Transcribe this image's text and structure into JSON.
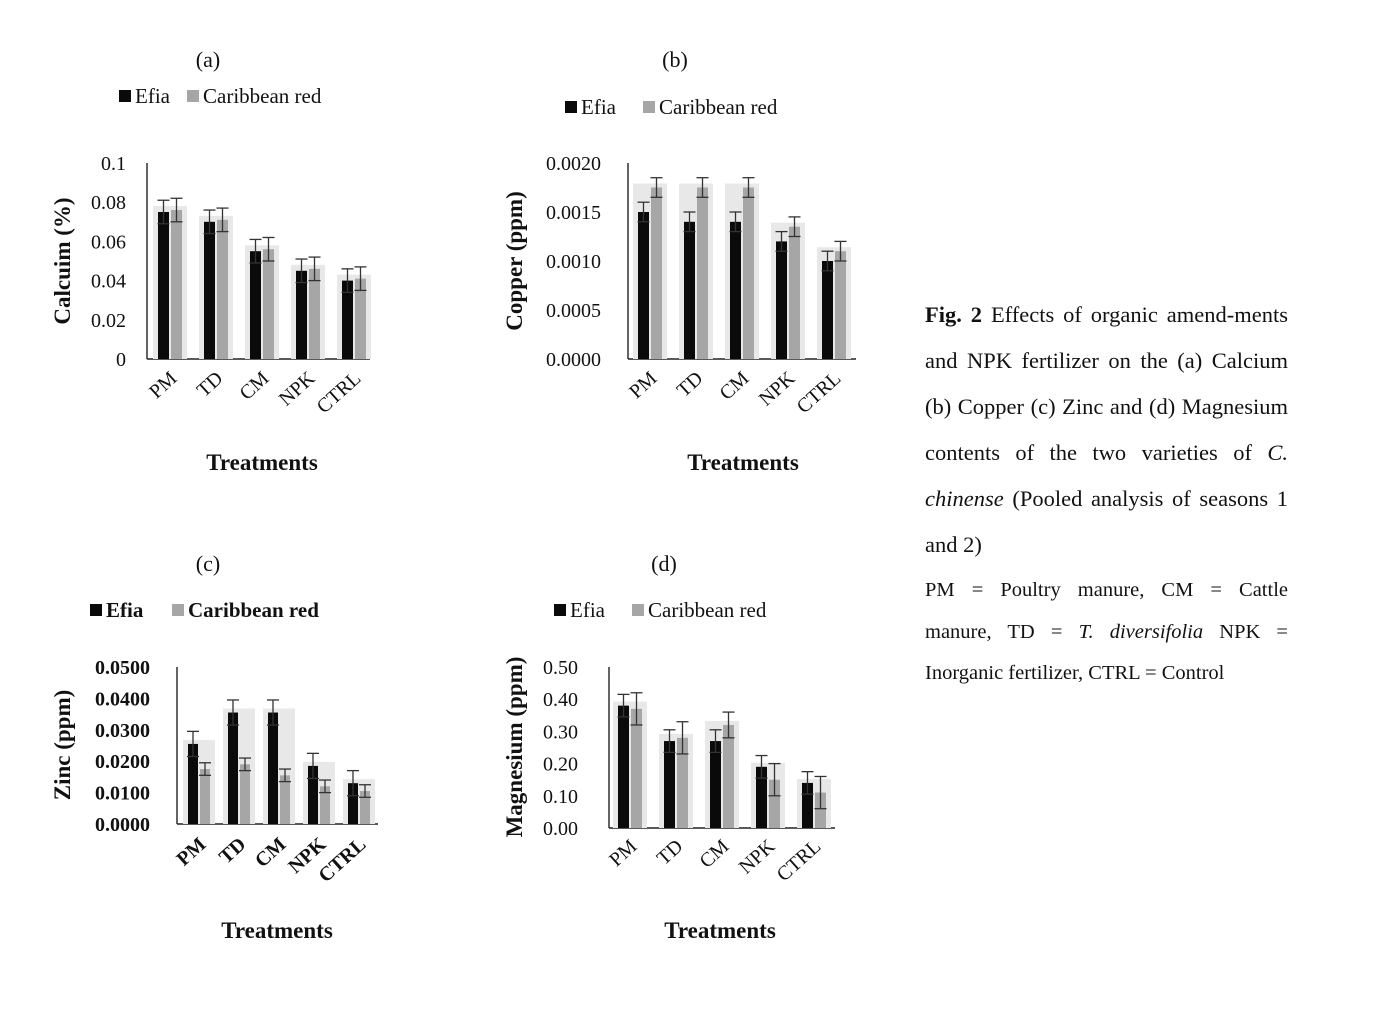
{
  "colors": {
    "efia": "#0a0a0a",
    "caribbean": "#a6a6a6",
    "axis": "#222222",
    "error": "#333333"
  },
  "chart_data": [
    {
      "type": "bar",
      "panel": "(a)",
      "title": "(a)",
      "categories": [
        "PM",
        "TD",
        "CM",
        "NPK",
        "CTRL"
      ],
      "series": [
        {
          "name": "Efia",
          "values": [
            0.075,
            0.07,
            0.055,
            0.045,
            0.04
          ],
          "errors": [
            0.006,
            0.006,
            0.006,
            0.006,
            0.006
          ]
        },
        {
          "name": "Caribbean red",
          "values": [
            0.076,
            0.071,
            0.056,
            0.046,
            0.041
          ],
          "errors": [
            0.006,
            0.006,
            0.006,
            0.006,
            0.006
          ]
        }
      ],
      "xlabel": "Treatments",
      "ylabel": "Calcuim (%)",
      "ylim": [
        0,
        0.1
      ],
      "yticks": [
        "0",
        "0.02",
        "0.04",
        "0.06",
        "0.08",
        "0.1"
      ],
      "legend": "top",
      "bold_ticks": false
    },
    {
      "type": "bar",
      "panel": "(b)",
      "title": "(b)",
      "categories": [
        "PM",
        "TD",
        "CM",
        "NPK",
        "CTRL"
      ],
      "series": [
        {
          "name": "Efia",
          "values": [
            0.0015,
            0.0014,
            0.0014,
            0.0012,
            0.001
          ],
          "errors": [
            0.0001,
            0.0001,
            0.0001,
            0.0001,
            0.0001
          ]
        },
        {
          "name": "Caribbean red",
          "values": [
            0.00175,
            0.00175,
            0.00175,
            0.00135,
            0.0011
          ],
          "errors": [
            0.0001,
            0.0001,
            0.0001,
            0.0001,
            0.0001
          ]
        }
      ],
      "xlabel": "Treatments",
      "ylabel": "Copper (ppm)",
      "ylim": [
        0,
        0.002
      ],
      "yticks": [
        "0.0000",
        "0.0005",
        "0.0010",
        "0.0015",
        "0.0020"
      ],
      "legend": "top",
      "bold_ticks": false
    },
    {
      "type": "bar",
      "panel": "(c)",
      "title": "(c)",
      "categories": [
        "PM",
        "TD",
        "CM",
        "NPK",
        "CTRL"
      ],
      "series": [
        {
          "name": "Efia",
          "values": [
            0.0255,
            0.0355,
            0.0355,
            0.0185,
            0.013
          ],
          "errors": [
            0.004,
            0.004,
            0.004,
            0.004,
            0.004
          ]
        },
        {
          "name": "Caribbean red",
          "values": [
            0.0175,
            0.019,
            0.0155,
            0.012,
            0.0105
          ],
          "errors": [
            0.002,
            0.002,
            0.002,
            0.002,
            0.002
          ]
        }
      ],
      "xlabel": "Treatments",
      "ylabel": "Zinc (ppm)",
      "ylim": [
        0,
        0.05
      ],
      "yticks": [
        "0.0000",
        "0.0100",
        "0.0200",
        "0.0300",
        "0.0400",
        "0.0500"
      ],
      "legend": "top",
      "bold_ticks": true
    },
    {
      "type": "bar",
      "panel": "(d)",
      "title": "(d)",
      "categories": [
        "PM",
        "TD",
        "CM",
        "NPK",
        "CTRL"
      ],
      "series": [
        {
          "name": "Efia",
          "values": [
            0.38,
            0.27,
            0.27,
            0.19,
            0.14
          ],
          "errors": [
            0.035,
            0.035,
            0.035,
            0.035,
            0.035
          ]
        },
        {
          "name": "Caribbean red",
          "values": [
            0.37,
            0.28,
            0.32,
            0.15,
            0.11
          ],
          "errors": [
            0.05,
            0.05,
            0.04,
            0.05,
            0.05
          ]
        }
      ],
      "xlabel": "Treatments",
      "ylabel": "Magnesium (ppm)",
      "ylim": [
        0,
        0.5
      ],
      "yticks": [
        "0.00",
        "0.10",
        "0.20",
        "0.30",
        "0.40",
        "0.50"
      ],
      "legend": "top",
      "bold_ticks": false
    }
  ],
  "caption": {
    "fig_label": "Fig. 2",
    "text_1": " Effects of organic amend-ments and NPK fertilizer on the (a) Calcium (b) Copper (c) Zinc and (d) Magnesium contents of the two varieties of ",
    "species": "C. chinense",
    "text_2": " (Pooled analysis of seasons 1 and 2)",
    "notes_1": "PM = Poultry manure, CM = Cattle manure, TD = ",
    "notes_species": "T. diversifolia",
    "notes_2": " NPK = Inorganic fertilizer, CTRL = Control"
  }
}
